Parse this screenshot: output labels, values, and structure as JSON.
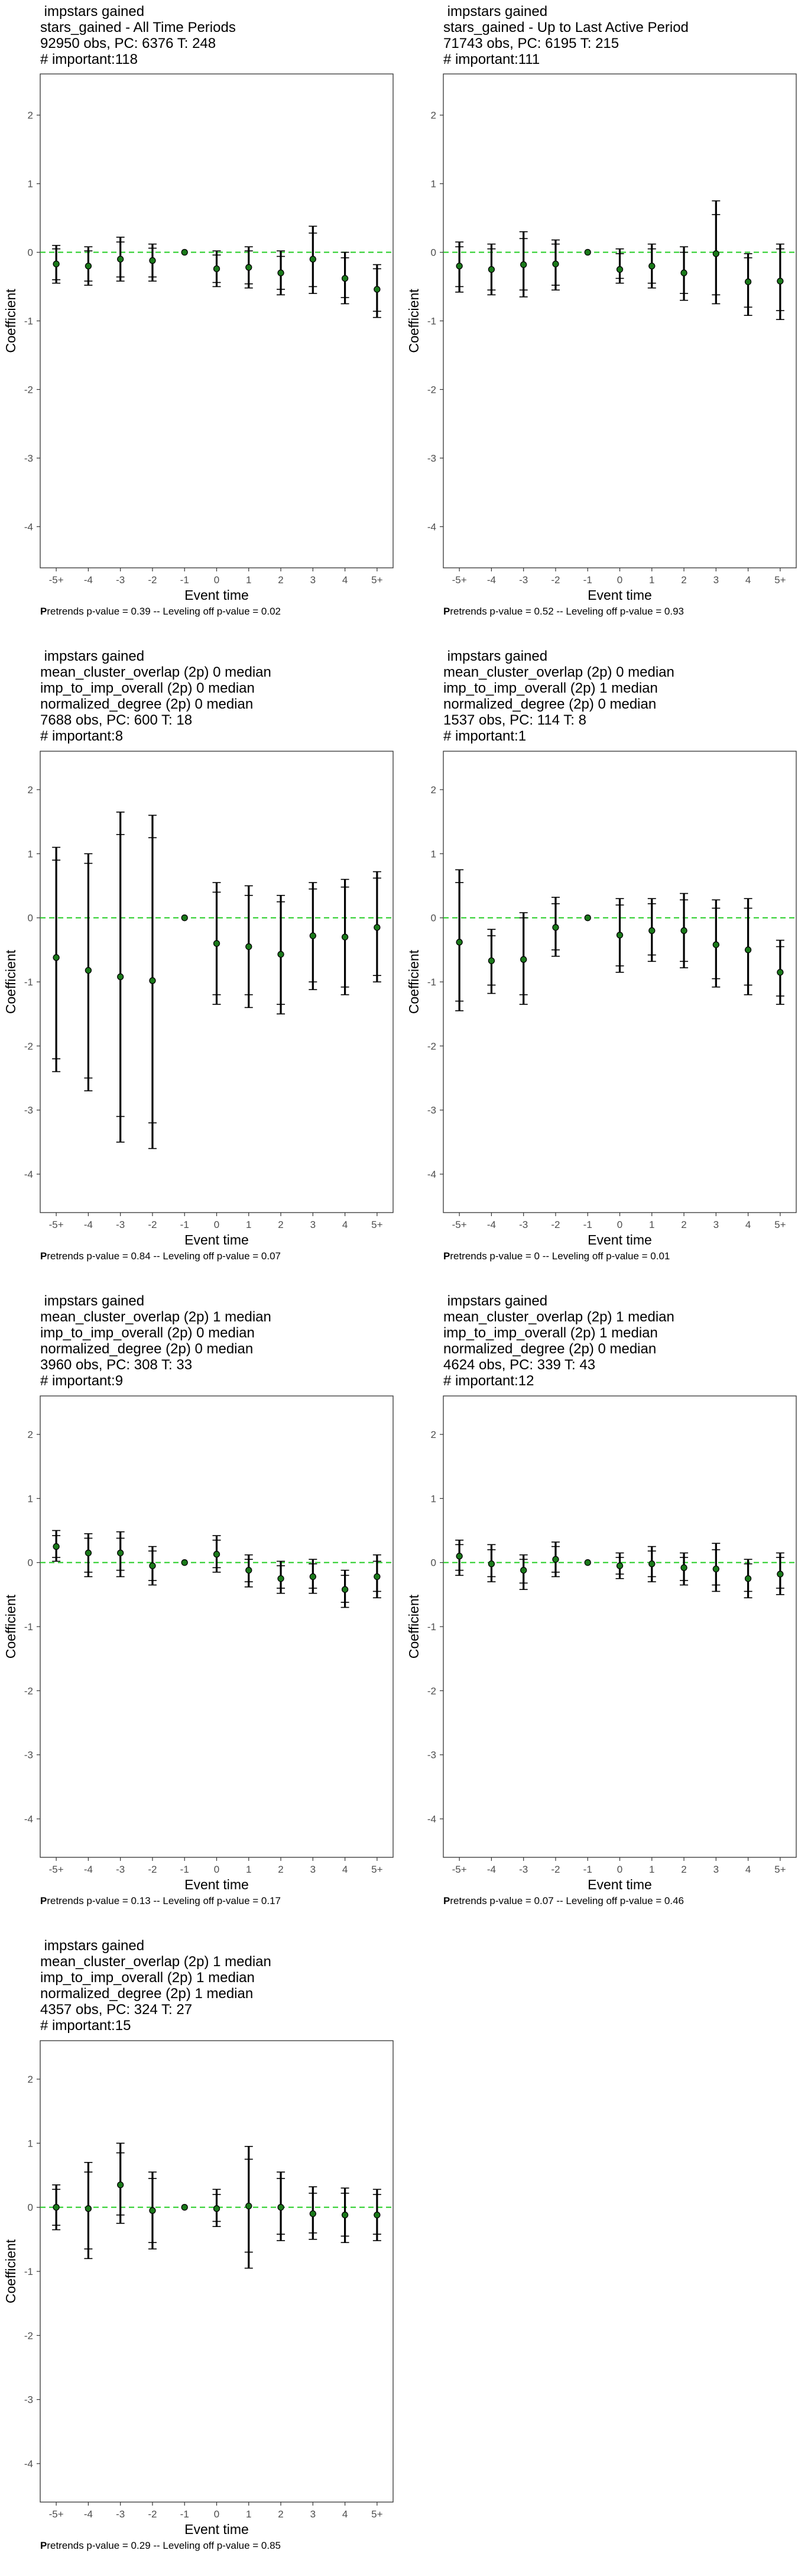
{
  "style": {
    "zero_line_color": "#22cc22",
    "point_color": "#1a7a1a",
    "bar_color": "#000000"
  },
  "axis": {
    "x_label": "Event time",
    "y_label": "Coefficient",
    "x_ticks": [
      "-5+",
      "-4",
      "-3",
      "-2",
      "-1",
      "0",
      "1",
      "2",
      "3",
      "4",
      "5+"
    ],
    "y_ticks": [
      "2",
      "1",
      "0",
      "-1",
      "-2",
      "-3",
      "-4"
    ],
    "ylim": [
      -4.6,
      2.6
    ]
  },
  "chart_data": [
    {
      "type": "scatter",
      "title_lines": [
        " impstars gained",
        "stars_gained - All Time Periods",
        "92950 obs, PC: 6376 T: 248",
        "# important:118"
      ],
      "caption_lead": "P",
      "caption_rest": "retrends p-value = 0.39 -- Leveling off p-value = 0.02",
      "x": [
        "-5+",
        "-4",
        "-3",
        "-2",
        "-1",
        "0",
        "1",
        "2",
        "3",
        "4",
        "5+"
      ],
      "y": [
        -0.17,
        -0.2,
        -0.1,
        -0.12,
        0,
        -0.24,
        -0.22,
        -0.3,
        -0.1,
        -0.38,
        -0.54
      ],
      "outer": [
        [
          -0.45,
          0.1
        ],
        [
          -0.48,
          0.08
        ],
        [
          -0.42,
          0.22
        ],
        [
          -0.42,
          0.12
        ],
        [
          0,
          0
        ],
        [
          -0.5,
          0.02
        ],
        [
          -0.52,
          0.08
        ],
        [
          -0.62,
          0.02
        ],
        [
          -0.6,
          0.38
        ],
        [
          -0.75,
          0
        ],
        [
          -0.95,
          -0.18
        ]
      ],
      "inner": [
        [
          -0.4,
          0.05
        ],
        [
          -0.42,
          0.02
        ],
        [
          -0.36,
          0.15
        ],
        [
          -0.36,
          0.06
        ],
        [
          0,
          0
        ],
        [
          -0.44,
          -0.04
        ],
        [
          -0.46,
          0.02
        ],
        [
          -0.54,
          -0.06
        ],
        [
          -0.5,
          0.28
        ],
        [
          -0.66,
          -0.08
        ],
        [
          -0.86,
          -0.24
        ]
      ]
    },
    {
      "type": "scatter",
      "title_lines": [
        " impstars gained",
        "stars_gained - Up to Last Active Period",
        "71743 obs, PC: 6195 T: 215",
        "# important:111"
      ],
      "caption_lead": "P",
      "caption_rest": "retrends p-value = 0.52 -- Leveling off p-value = 0.93",
      "x": [
        "-5+",
        "-4",
        "-3",
        "-2",
        "-1",
        "0",
        "1",
        "2",
        "3",
        "4",
        "5+"
      ],
      "y": [
        -0.2,
        -0.25,
        -0.18,
        -0.17,
        0,
        -0.25,
        -0.2,
        -0.3,
        -0.02,
        -0.43,
        -0.42
      ],
      "outer": [
        [
          -0.58,
          0.15
        ],
        [
          -0.62,
          0.12
        ],
        [
          -0.65,
          0.3
        ],
        [
          -0.55,
          0.18
        ],
        [
          0,
          0
        ],
        [
          -0.45,
          0.05
        ],
        [
          -0.52,
          0.12
        ],
        [
          -0.7,
          0.08
        ],
        [
          -0.75,
          0.75
        ],
        [
          -0.92,
          -0.02
        ],
        [
          -0.98,
          0.12
        ]
      ],
      "inner": [
        [
          -0.5,
          0.08
        ],
        [
          -0.55,
          0.05
        ],
        [
          -0.55,
          0.2
        ],
        [
          -0.48,
          0.12
        ],
        [
          0,
          0
        ],
        [
          -0.38,
          -0.02
        ],
        [
          -0.45,
          0.05
        ],
        [
          -0.6,
          0
        ],
        [
          -0.62,
          0.55
        ],
        [
          -0.8,
          -0.08
        ],
        [
          -0.85,
          0.05
        ]
      ]
    },
    {
      "type": "scatter",
      "title_lines": [
        " impstars gained",
        "mean_cluster_overlap (2p) 0 median",
        "imp_to_imp_overall (2p) 0 median",
        "normalized_degree (2p) 0 median",
        "7688 obs, PC: 600 T: 18",
        "# important:8"
      ],
      "caption_lead": "P",
      "caption_rest": "retrends p-value = 0.84 -- Leveling off p-value = 0.07",
      "x": [
        "-5+",
        "-4",
        "-3",
        "-2",
        "-1",
        "0",
        "1",
        "2",
        "3",
        "4",
        "5+"
      ],
      "y": [
        -0.62,
        -0.82,
        -0.92,
        -0.98,
        0,
        -0.4,
        -0.45,
        -0.57,
        -0.28,
        -0.3,
        -0.15
      ],
      "outer": [
        [
          -2.4,
          1.1
        ],
        [
          -2.7,
          1.0
        ],
        [
          -3.5,
          1.65
        ],
        [
          -3.6,
          1.6
        ],
        [
          0,
          0
        ],
        [
          -1.35,
          0.55
        ],
        [
          -1.4,
          0.5
        ],
        [
          -1.5,
          0.35
        ],
        [
          -1.12,
          0.55
        ],
        [
          -1.2,
          0.6
        ],
        [
          -1.0,
          0.72
        ]
      ],
      "inner": [
        [
          -2.2,
          0.9
        ],
        [
          -2.5,
          0.85
        ],
        [
          -3.1,
          1.3
        ],
        [
          -3.2,
          1.25
        ],
        [
          0,
          0
        ],
        [
          -1.2,
          0.4
        ],
        [
          -1.2,
          0.35
        ],
        [
          -1.35,
          0.25
        ],
        [
          -1.0,
          0.45
        ],
        [
          -1.08,
          0.48
        ],
        [
          -0.9,
          0.62
        ]
      ]
    },
    {
      "type": "scatter",
      "title_lines": [
        " impstars gained",
        "mean_cluster_overlap (2p) 0 median",
        "imp_to_imp_overall (2p) 1 median",
        "normalized_degree (2p) 0 median",
        "1537 obs, PC: 114 T: 8",
        "# important:1"
      ],
      "caption_lead": "P",
      "caption_rest": "retrends p-value = 0 -- Leveling off p-value = 0.01",
      "x": [
        "-5+",
        "-4",
        "-3",
        "-2",
        "-1",
        "0",
        "1",
        "2",
        "3",
        "4",
        "5+"
      ],
      "y": [
        -0.38,
        -0.67,
        -0.65,
        -0.15,
        0,
        -0.27,
        -0.2,
        -0.2,
        -0.42,
        -0.5,
        -0.85
      ],
      "outer": [
        [
          -1.45,
          0.75
        ],
        [
          -1.18,
          -0.18
        ],
        [
          -1.35,
          0.08
        ],
        [
          -0.6,
          0.32
        ],
        [
          0,
          0
        ],
        [
          -0.85,
          0.3
        ],
        [
          -0.68,
          0.3
        ],
        [
          -0.78,
          0.38
        ],
        [
          -1.08,
          0.28
        ],
        [
          -1.2,
          0.3
        ],
        [
          -1.35,
          -0.35
        ]
      ],
      "inner": [
        [
          -1.3,
          0.55
        ],
        [
          -1.05,
          -0.28
        ],
        [
          -1.2,
          0.0
        ],
        [
          -0.5,
          0.22
        ],
        [
          0,
          0
        ],
        [
          -0.75,
          0.2
        ],
        [
          -0.58,
          0.22
        ],
        [
          -0.68,
          0.28
        ],
        [
          -0.95,
          0.15
        ],
        [
          -1.05,
          0.15
        ],
        [
          -1.22,
          -0.45
        ]
      ]
    },
    {
      "type": "scatter",
      "title_lines": [
        " impstars gained",
        "mean_cluster_overlap (2p) 1 median",
        "imp_to_imp_overall (2p) 0 median",
        "normalized_degree (2p) 0 median",
        "3960 obs, PC: 308 T: 33",
        "# important:9"
      ],
      "caption_lead": "P",
      "caption_rest": "retrends p-value = 0.13 -- Leveling off p-value = 0.17",
      "x": [
        "-5+",
        "-4",
        "-3",
        "-2",
        "-1",
        "0",
        "1",
        "2",
        "3",
        "4",
        "5+"
      ],
      "y": [
        0.25,
        0.15,
        0.15,
        -0.05,
        0,
        0.13,
        -0.12,
        -0.25,
        -0.22,
        -0.42,
        -0.22
      ],
      "outer": [
        [
          0.02,
          0.5
        ],
        [
          -0.22,
          0.45
        ],
        [
          -0.22,
          0.48
        ],
        [
          -0.35,
          0.25
        ],
        [
          0,
          0
        ],
        [
          -0.15,
          0.42
        ],
        [
          -0.38,
          0.12
        ],
        [
          -0.48,
          0.02
        ],
        [
          -0.48,
          0.05
        ],
        [
          -0.7,
          -0.12
        ],
        [
          -0.55,
          0.12
        ]
      ],
      "inner": [
        [
          0.08,
          0.42
        ],
        [
          -0.15,
          0.38
        ],
        [
          -0.12,
          0.38
        ],
        [
          -0.28,
          0.18
        ],
        [
          0,
          0
        ],
        [
          -0.08,
          0.35
        ],
        [
          -0.3,
          0.05
        ],
        [
          -0.4,
          -0.05
        ],
        [
          -0.4,
          -0.02
        ],
        [
          -0.62,
          -0.2
        ],
        [
          -0.45,
          0.02
        ]
      ]
    },
    {
      "type": "scatter",
      "title_lines": [
        " impstars gained",
        "mean_cluster_overlap (2p) 1 median",
        "imp_to_imp_overall (2p) 1 median",
        "normalized_degree (2p) 0 median",
        "4624 obs, PC: 339 T: 43",
        "# important:12"
      ],
      "caption_lead": "P",
      "caption_rest": "retrends p-value = 0.07 -- Leveling off p-value = 0.46",
      "x": [
        "-5+",
        "-4",
        "-3",
        "-2",
        "-1",
        "0",
        "1",
        "2",
        "3",
        "4",
        "5+"
      ],
      "y": [
        0.1,
        -0.02,
        -0.12,
        0.05,
        0,
        -0.05,
        -0.02,
        -0.08,
        -0.1,
        -0.25,
        -0.18
      ],
      "outer": [
        [
          -0.2,
          0.35
        ],
        [
          -0.3,
          0.28
        ],
        [
          -0.42,
          0.12
        ],
        [
          -0.22,
          0.32
        ],
        [
          0,
          0
        ],
        [
          -0.25,
          0.15
        ],
        [
          -0.3,
          0.25
        ],
        [
          -0.35,
          0.15
        ],
        [
          -0.45,
          0.3
        ],
        [
          -0.55,
          0.05
        ],
        [
          -0.5,
          0.15
        ]
      ],
      "inner": [
        [
          -0.12,
          0.28
        ],
        [
          -0.22,
          0.2
        ],
        [
          -0.32,
          0.05
        ],
        [
          -0.15,
          0.25
        ],
        [
          0,
          0
        ],
        [
          -0.18,
          0.08
        ],
        [
          -0.22,
          0.18
        ],
        [
          -0.28,
          0.08
        ],
        [
          -0.35,
          0.2
        ],
        [
          -0.45,
          -0.02
        ],
        [
          -0.4,
          0.08
        ]
      ]
    },
    {
      "type": "scatter",
      "title_lines": [
        " impstars gained",
        "mean_cluster_overlap (2p) 1 median",
        "imp_to_imp_overall (2p) 1 median",
        "normalized_degree (2p) 1 median",
        "4357 obs, PC: 324 T: 27",
        "# important:15"
      ],
      "caption_lead": "P",
      "caption_rest": "retrends p-value = 0.29 -- Leveling off p-value = 0.85",
      "x": [
        "-5+",
        "-4",
        "-3",
        "-2",
        "-1",
        "0",
        "1",
        "2",
        "3",
        "4",
        "5+"
      ],
      "y": [
        0.0,
        -0.02,
        0.35,
        -0.05,
        0,
        -0.02,
        0.02,
        0.0,
        -0.1,
        -0.12,
        -0.12
      ],
      "outer": [
        [
          -0.35,
          0.35
        ],
        [
          -0.8,
          0.7
        ],
        [
          -0.25,
          1.0
        ],
        [
          -0.65,
          0.55
        ],
        [
          0,
          0
        ],
        [
          -0.3,
          0.28
        ],
        [
          -0.95,
          0.95
        ],
        [
          -0.52,
          0.55
        ],
        [
          -0.5,
          0.32
        ],
        [
          -0.55,
          0.3
        ],
        [
          -0.52,
          0.28
        ]
      ],
      "inner": [
        [
          -0.28,
          0.28
        ],
        [
          -0.65,
          0.55
        ],
        [
          -0.12,
          0.85
        ],
        [
          -0.55,
          0.45
        ],
        [
          0,
          0
        ],
        [
          -0.22,
          0.2
        ],
        [
          -0.7,
          0.75
        ],
        [
          -0.42,
          0.45
        ],
        [
          -0.4,
          0.22
        ],
        [
          -0.45,
          0.22
        ],
        [
          -0.42,
          0.2
        ]
      ]
    }
  ]
}
